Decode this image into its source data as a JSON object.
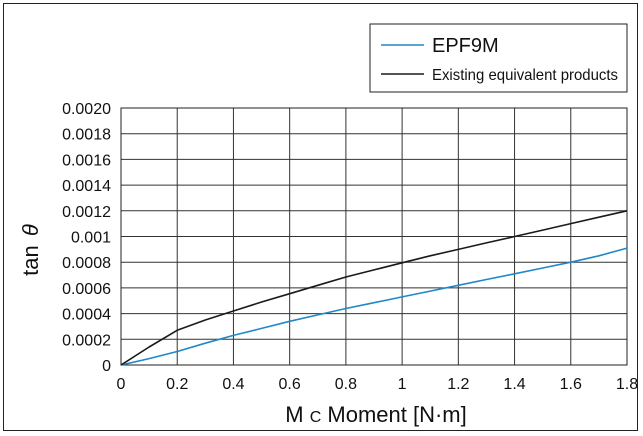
{
  "chart_data": {
    "type": "line",
    "xlabel_main": "M",
    "xlabel_sub": "C",
    "xlabel_rest": " Moment [N·m]",
    "ylabel_main": "tan",
    "ylabel_symbol": "θ",
    "xlim": [
      0,
      1.8
    ],
    "ylim": [
      0,
      0.002
    ],
    "x_ticks": [
      "0",
      "0.2",
      "0.4",
      "0.6",
      "0.8",
      "1",
      "1.2",
      "1.4",
      "1.6",
      "1.8"
    ],
    "y_ticks": [
      "0",
      "0.0002",
      "0.0004",
      "0.0006",
      "0.0008",
      "0.001",
      "0.0012",
      "0.0014",
      "0.0016",
      "0.0018",
      "0.0020"
    ],
    "grid": true,
    "legend_position": "top-right",
    "series": [
      {
        "name": "EPF9M",
        "color": "#1f88c9",
        "x": [
          0,
          0.1,
          0.2,
          0.3,
          0.4,
          0.5,
          0.6,
          0.7,
          0.8,
          0.9,
          1.0,
          1.1,
          1.2,
          1.3,
          1.4,
          1.5,
          1.6,
          1.7,
          1.8
        ],
        "y": [
          0,
          5e-05,
          0.000105,
          0.00017,
          0.00023,
          0.000285,
          0.00034,
          0.00039,
          0.00044,
          0.000485,
          0.00053,
          0.000575,
          0.00062,
          0.000665,
          0.00071,
          0.000755,
          0.0008,
          0.00085,
          0.00091
        ]
      },
      {
        "name": "Existing equivalent products",
        "color": "#1a1a1a",
        "x": [
          0,
          0.1,
          0.2,
          0.3,
          0.4,
          0.5,
          0.6,
          0.7,
          0.8,
          0.9,
          1.0,
          1.1,
          1.2,
          1.3,
          1.4,
          1.5,
          1.6,
          1.7,
          1.8
        ],
        "y": [
          0,
          0.00014,
          0.00027,
          0.00035,
          0.00042,
          0.00049,
          0.000555,
          0.00062,
          0.000685,
          0.00074,
          0.000795,
          0.00085,
          0.0009,
          0.00095,
          0.001,
          0.00105,
          0.0011,
          0.00115,
          0.0012
        ]
      }
    ]
  }
}
